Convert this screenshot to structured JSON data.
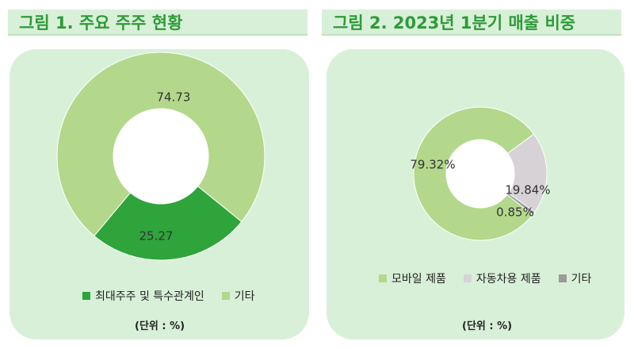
{
  "figures": [
    {
      "title": "그림 1. 주요 주주 현황",
      "unit": "(단위 : %)"
    },
    {
      "title": "그림 2. 2023년 1분기 매출 비중",
      "unit": "(단위 : %)"
    }
  ],
  "chart_data": [
    {
      "type": "pie",
      "donut": true,
      "title": "그림 1. 주요 주주 현황",
      "categories": [
        "최대주주 및 특수관계인",
        "기타"
      ],
      "values": [
        25.27,
        74.73
      ],
      "labels": [
        "25.27",
        "74.73"
      ],
      "colors": [
        "#2ea43a",
        "#b3d88c"
      ],
      "legend_position": "bottom",
      "unit": "%"
    },
    {
      "type": "pie",
      "donut": true,
      "title": "그림 2. 2023년 1분기 매출 비중",
      "categories": [
        "모바일 제품",
        "자동차용 제품",
        "기타"
      ],
      "values": [
        79.32,
        19.84,
        0.85
      ],
      "labels": [
        "79.32%",
        "19.84%",
        "0.85%"
      ],
      "colors": [
        "#b3d88c",
        "#d6d2d6",
        "#9a9a9a"
      ],
      "legend_position": "bottom",
      "unit": "%"
    }
  ]
}
